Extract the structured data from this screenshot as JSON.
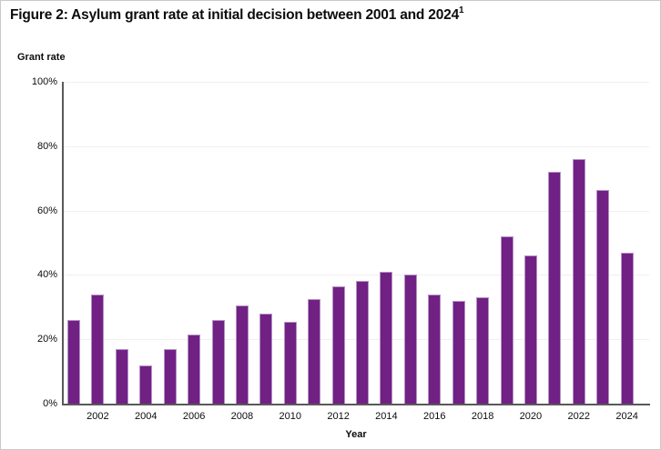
{
  "figure": {
    "title": "Figure 2: Asylum grant rate at initial decision between 2001 and 2024",
    "footnote_marker": "1"
  },
  "chart_data": {
    "type": "bar",
    "title": "Figure 2: Asylum grant rate at initial decision between 2001 and 2024",
    "ylabel": "Grant rate",
    "xlabel": "Year",
    "unit": "percent",
    "ylim": [
      0,
      100
    ],
    "y_tick_labels": [
      "0%",
      "20%",
      "40%",
      "60%",
      "80%",
      "100%"
    ],
    "x_tick_labels": [
      "2002",
      "2004",
      "2006",
      "2008",
      "2010",
      "2012",
      "2014",
      "2016",
      "2018",
      "2020",
      "2022",
      "2024"
    ],
    "grid": true,
    "legend_position": "none",
    "categories": [
      "2001",
      "2002",
      "2003",
      "2004",
      "2005",
      "2006",
      "2007",
      "2008",
      "2009",
      "2010",
      "2011",
      "2012",
      "2013",
      "2014",
      "2015",
      "2016",
      "2017",
      "2018",
      "2019",
      "2020",
      "2021",
      "2022",
      "2023",
      "2024"
    ],
    "values": [
      26,
      34,
      17,
      12,
      17,
      21.5,
      26,
      30.5,
      28,
      25.5,
      32.5,
      36.5,
      38,
      41,
      40,
      34,
      32,
      33,
      52,
      46,
      72,
      76,
      66.5,
      47
    ]
  },
  "colors": {
    "bar_fill": "#702183",
    "bar_border": "#b691c6",
    "axis": "#595959",
    "gridline": "#f0f0f0",
    "text": "#0b0c0c",
    "background": "#ffffff",
    "frame_border": "#c9c9c9"
  }
}
